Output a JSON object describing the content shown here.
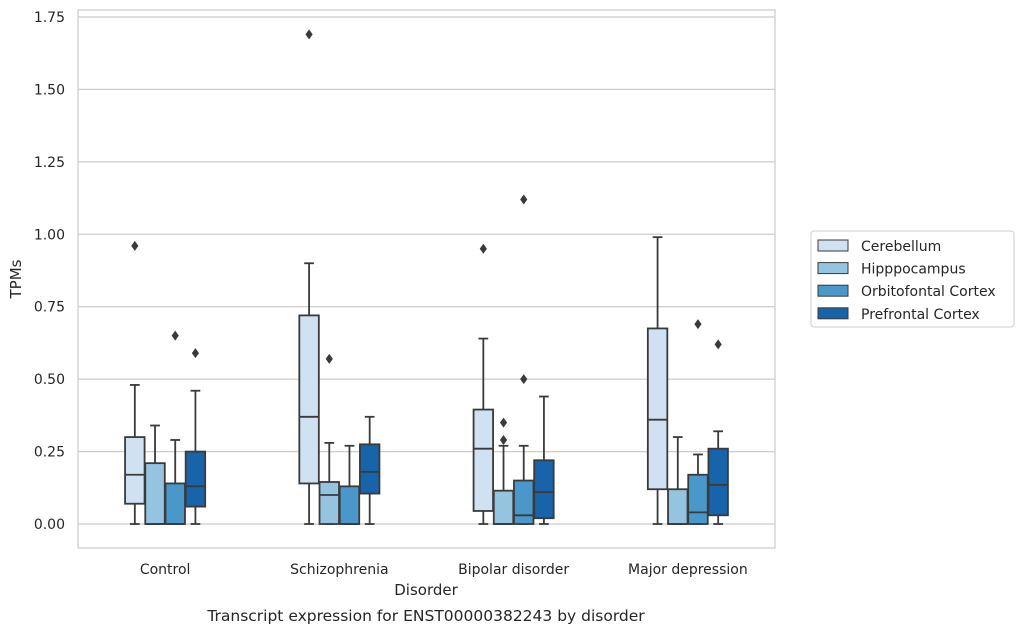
{
  "chart_data": {
    "type": "box",
    "title": "",
    "caption": "Transcript expression for ENST00000382243 by disorder",
    "xlabel": "Disorder",
    "ylabel": "TPMs",
    "ylim": [
      -0.08,
      1.77
    ],
    "yticks": [
      "0.00",
      "0.25",
      "0.50",
      "0.75",
      "1.00",
      "1.25",
      "1.50",
      "1.75"
    ],
    "grid": "horizontal",
    "legend_position": "right",
    "categories": [
      "Control",
      "Schizophrenia",
      "Bipolar disorder",
      "Major depression"
    ],
    "series": [
      {
        "name": "Cerebellum",
        "color": "#d0e1f2",
        "boxes": [
          {
            "whisker_low": 0.0,
            "q1": 0.07,
            "median": 0.17,
            "q3": 0.3,
            "whisker_high": 0.48,
            "outliers": [
              0.96
            ]
          },
          {
            "whisker_low": 0.0,
            "q1": 0.14,
            "median": 0.37,
            "q3": 0.72,
            "whisker_high": 0.9,
            "outliers": [
              1.69
            ]
          },
          {
            "whisker_low": 0.0,
            "q1": 0.045,
            "median": 0.26,
            "q3": 0.395,
            "whisker_high": 0.64,
            "outliers": [
              0.95
            ]
          },
          {
            "whisker_low": 0.0,
            "q1": 0.12,
            "median": 0.36,
            "q3": 0.675,
            "whisker_high": 0.99,
            "outliers": []
          }
        ]
      },
      {
        "name": "Hipppocampus",
        "color": "#94c4df",
        "boxes": [
          {
            "whisker_low": 0.0,
            "q1": 0.0,
            "median": 0.0,
            "q3": 0.21,
            "whisker_high": 0.34,
            "outliers": []
          },
          {
            "whisker_low": 0.0,
            "q1": 0.0,
            "median": 0.1,
            "q3": 0.145,
            "whisker_high": 0.28,
            "outliers": [
              0.57
            ]
          },
          {
            "whisker_low": 0.0,
            "q1": 0.0,
            "median": 0.0,
            "q3": 0.115,
            "whisker_high": 0.27,
            "outliers": [
              0.29,
              0.35
            ]
          },
          {
            "whisker_low": 0.0,
            "q1": 0.0,
            "median": 0.0,
            "q3": 0.12,
            "whisker_high": 0.3,
            "outliers": []
          }
        ]
      },
      {
        "name": "Orbitofontal Cortex",
        "color": "#4a98c9",
        "boxes": [
          {
            "whisker_low": 0.0,
            "q1": 0.0,
            "median": 0.0,
            "q3": 0.14,
            "whisker_high": 0.29,
            "outliers": [
              0.65
            ]
          },
          {
            "whisker_low": 0.0,
            "q1": 0.0,
            "median": 0.0,
            "q3": 0.13,
            "whisker_high": 0.27,
            "outliers": []
          },
          {
            "whisker_low": 0.0,
            "q1": 0.0,
            "median": 0.03,
            "q3": 0.15,
            "whisker_high": 0.27,
            "outliers": [
              0.5,
              1.12
            ]
          },
          {
            "whisker_low": 0.0,
            "q1": 0.0,
            "median": 0.04,
            "q3": 0.17,
            "whisker_high": 0.24,
            "outliers": [
              0.69
            ]
          }
        ]
      },
      {
        "name": "Prefrontal Cortex",
        "color": "#1764ab",
        "boxes": [
          {
            "whisker_low": 0.0,
            "q1": 0.06,
            "median": 0.13,
            "q3": 0.25,
            "whisker_high": 0.46,
            "outliers": [
              0.59
            ]
          },
          {
            "whisker_low": 0.0,
            "q1": 0.105,
            "median": 0.18,
            "q3": 0.275,
            "whisker_high": 0.37,
            "outliers": []
          },
          {
            "whisker_low": 0.0,
            "q1": 0.02,
            "median": 0.11,
            "q3": 0.22,
            "whisker_high": 0.44,
            "outliers": []
          },
          {
            "whisker_low": 0.0,
            "q1": 0.03,
            "median": 0.135,
            "q3": 0.26,
            "whisker_high": 0.32,
            "outliers": [
              0.62
            ]
          }
        ]
      }
    ]
  }
}
